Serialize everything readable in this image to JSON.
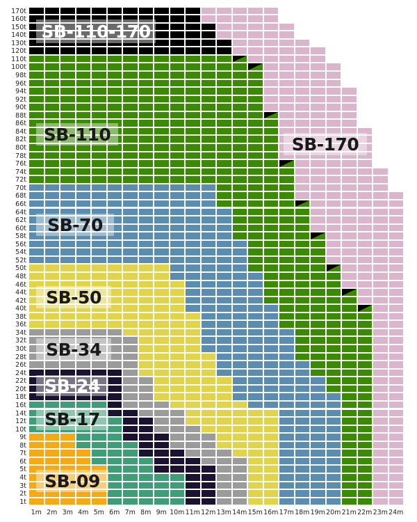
{
  "chart_data": {
    "type": "heatmap",
    "x_labels": [
      "1m",
      "2m",
      "3m",
      "4m",
      "5m",
      "6m",
      "7m",
      "8m",
      "9m",
      "10m",
      "11m",
      "12m",
      "13m",
      "14m",
      "15m",
      "16m",
      "17m",
      "18m",
      "19m",
      "20m",
      "21m",
      "22m",
      "23m",
      "24m"
    ],
    "y_labels": [
      "1t",
      "2t",
      "3t",
      "4t",
      "5t",
      "6t",
      "7t",
      "8t",
      "9t",
      "10t",
      "12t",
      "14t",
      "16t",
      "18t",
      "20t",
      "22t",
      "24t",
      "26t",
      "28t",
      "30t",
      "32t",
      "34t",
      "36t",
      "38t",
      "40t",
      "42t",
      "44t",
      "46t",
      "48t",
      "50t",
      "52t",
      "54t",
      "56t",
      "58t",
      "60t",
      "62t",
      "64t",
      "66t",
      "68t",
      "70t",
      "72t",
      "74t",
      "76t",
      "78t",
      "80t",
      "82t",
      "84t",
      "86t",
      "88t",
      "90t",
      "92t",
      "94t",
      "96t",
      "98t",
      "100t",
      "110t",
      "120t",
      "130t",
      "140t",
      "150t",
      "160t",
      "170t"
    ],
    "classes": {
      "SB-09": "#f5a915",
      "SB-17": "#3f9e78",
      "SB-24": "#1b1131",
      "SB-34": "#9b9b9b",
      "SB-50": "#e2d44a",
      "SB-70": "#5a8db0",
      "SB-110": "#3b8a04",
      "SB-110-170": "#000000",
      "SB-170": "#dbb5cc"
    },
    "columns": [
      [
        [
          "SB-09",
          "1t",
          "9t"
        ],
        [
          "SB-17",
          "10t",
          "16t"
        ],
        [
          "SB-24",
          "18t",
          "24t"
        ],
        [
          "SB-34",
          "26t",
          "34t"
        ],
        [
          "SB-50",
          "36t",
          "50t"
        ],
        [
          "SB-70",
          "52t",
          "70t"
        ],
        [
          "SB-110",
          "72t",
          "110t"
        ],
        [
          "SB-110-170",
          "120t",
          "170t"
        ]
      ],
      [
        [
          "SB-09",
          "1t",
          "9t"
        ],
        [
          "SB-17",
          "10t",
          "16t"
        ],
        [
          "SB-24",
          "18t",
          "24t"
        ],
        [
          "SB-34",
          "26t",
          "34t"
        ],
        [
          "SB-50",
          "36t",
          "50t"
        ],
        [
          "SB-70",
          "52t",
          "70t"
        ],
        [
          "SB-110",
          "72t",
          "110t"
        ],
        [
          "SB-110-170",
          "120t",
          "170t"
        ]
      ],
      [
        [
          "SB-09",
          "1t",
          "9t"
        ],
        [
          "SB-17",
          "10t",
          "16t"
        ],
        [
          "SB-24",
          "18t",
          "24t"
        ],
        [
          "SB-34",
          "26t",
          "34t"
        ],
        [
          "SB-50",
          "36t",
          "50t"
        ],
        [
          "SB-70",
          "52t",
          "70t"
        ],
        [
          "SB-110",
          "72t",
          "110t"
        ],
        [
          "SB-110-170",
          "120t",
          "170t"
        ]
      ],
      [
        [
          "SB-09",
          "1t",
          "7t"
        ],
        [
          "SB-17",
          "8t",
          "16t"
        ],
        [
          "SB-24",
          "18t",
          "24t"
        ],
        [
          "SB-34",
          "26t",
          "34t"
        ],
        [
          "SB-50",
          "36t",
          "50t"
        ],
        [
          "SB-70",
          "52t",
          "70t"
        ],
        [
          "SB-110",
          "72t",
          "110t"
        ],
        [
          "SB-110-170",
          "120t",
          "170t"
        ]
      ],
      [
        [
          "SB-09",
          "1t",
          "5t"
        ],
        [
          "SB-17",
          "6t",
          "16t"
        ],
        [
          "SB-24",
          "18t",
          "24t"
        ],
        [
          "SB-34",
          "26t",
          "34t"
        ],
        [
          "SB-50",
          "36t",
          "50t"
        ],
        [
          "SB-70",
          "52t",
          "70t"
        ],
        [
          "SB-110",
          "72t",
          "110t"
        ],
        [
          "SB-110-170",
          "120t",
          "170t"
        ]
      ],
      [
        [
          "SB-17",
          "1t",
          "12t"
        ],
        [
          "SB-24",
          "14t",
          "24t"
        ],
        [
          "SB-34",
          "26t",
          "34t"
        ],
        [
          "SB-50",
          "36t",
          "50t"
        ],
        [
          "SB-70",
          "52t",
          "70t"
        ],
        [
          "SB-110",
          "72t",
          "110t"
        ],
        [
          "SB-110-170",
          "120t",
          "170t"
        ]
      ],
      [
        [
          "SB-17",
          "1t",
          "8t"
        ],
        [
          "SB-24",
          "9t",
          "14t"
        ],
        [
          "SB-34",
          "16t",
          "32t"
        ],
        [
          "SB-50",
          "34t",
          "50t"
        ],
        [
          "SB-70",
          "52t",
          "70t"
        ],
        [
          "SB-110",
          "72t",
          "110t"
        ],
        [
          "SB-110-170",
          "120t",
          "170t"
        ]
      ],
      [
        [
          "SB-17",
          "1t",
          "6t"
        ],
        [
          "SB-24",
          "7t",
          "12t"
        ],
        [
          "SB-34",
          "14t",
          "22t"
        ],
        [
          "SB-50",
          "24t",
          "50t"
        ],
        [
          "SB-70",
          "52t",
          "70t"
        ],
        [
          "SB-110",
          "72t",
          "110t"
        ],
        [
          "SB-110-170",
          "120t",
          "170t"
        ]
      ],
      [
        [
          "SB-17",
          "1t",
          "4t"
        ],
        [
          "SB-24",
          "5t",
          "9t"
        ],
        [
          "SB-34",
          "10t",
          "16t"
        ],
        [
          "SB-50",
          "18t",
          "50t"
        ],
        [
          "SB-70",
          "52t",
          "70t"
        ],
        [
          "SB-110",
          "72t",
          "110t"
        ],
        [
          "SB-110-170",
          "120t",
          "170t"
        ]
      ],
      [
        [
          "SB-17",
          "1t",
          "4t"
        ],
        [
          "SB-24",
          "5t",
          "7t"
        ],
        [
          "SB-34",
          "8t",
          "14t"
        ],
        [
          "SB-50",
          "16t",
          "46t"
        ],
        [
          "SB-70",
          "48t",
          "70t"
        ],
        [
          "SB-110",
          "72t",
          "110t"
        ],
        [
          "SB-110-170",
          "120t",
          "170t"
        ]
      ],
      [
        [
          "SB-24",
          "1t",
          "6t"
        ],
        [
          "SB-34",
          "7t",
          "10t"
        ],
        [
          "SB-50",
          "12t",
          "38t"
        ],
        [
          "SB-70",
          "40t",
          "70t"
        ],
        [
          "SB-110",
          "72t",
          "110t"
        ],
        [
          "SB-110-170",
          "120t",
          "170t"
        ]
      ],
      [
        [
          "SB-24",
          "1t",
          "5t"
        ],
        [
          "SB-34",
          "6t",
          "9t"
        ],
        [
          "SB-50",
          "10t",
          "28t"
        ],
        [
          "SB-70",
          "30t",
          "70t"
        ],
        [
          "SB-110",
          "72t",
          "110t"
        ],
        [
          "SB-110-170",
          "120t",
          "150t"
        ],
        [
          "SB-170",
          "160t",
          "170t"
        ]
      ],
      [
        [
          "SB-34",
          "1t",
          "7t"
        ],
        [
          "SB-50",
          "8t",
          "22t"
        ],
        [
          "SB-70",
          "24t",
          "64t"
        ],
        [
          "SB-110",
          "66t",
          "110t"
        ],
        [
          "SB-110-170",
          "120t",
          "130t"
        ],
        [
          "SB-170",
          "140t",
          "170t"
        ]
      ],
      [
        [
          "SB-34",
          "1t",
          "6t"
        ],
        [
          "SB-50",
          "7t",
          "16t"
        ],
        [
          "SB-70",
          "18t",
          "56t"
        ],
        [
          "SB-110",
          "58t",
          "110t"
        ],
        [
          "SB-170",
          "120t",
          "170t"
        ]
      ],
      [
        [
          "SB-50",
          "1t",
          "14t"
        ],
        [
          "SB-70",
          "16t",
          "48t"
        ],
        [
          "SB-110",
          "50t",
          "100t"
        ],
        [
          "SB-170",
          "110t",
          "170t"
        ]
      ],
      [
        [
          "SB-50",
          "1t",
          "14t"
        ],
        [
          "SB-70",
          "16t",
          "40t"
        ],
        [
          "SB-110",
          "42t",
          "88t"
        ],
        [
          "SB-170",
          "90t",
          "170t"
        ]
      ],
      [
        [
          "SB-70",
          "1t",
          "34t"
        ],
        [
          "SB-110",
          "36t",
          "76t"
        ],
        [
          "SB-170",
          "78t",
          "150t"
        ]
      ],
      [
        [
          "SB-70",
          "1t",
          "26t"
        ],
        [
          "SB-110",
          "28t",
          "66t"
        ],
        [
          "SB-170",
          "68t",
          "130t"
        ]
      ],
      [
        [
          "SB-70",
          "1t",
          "22t"
        ],
        [
          "SB-110",
          "24t",
          "58t"
        ],
        [
          "SB-170",
          "60t",
          "120t"
        ]
      ],
      [
        [
          "SB-70",
          "1t",
          "18t"
        ],
        [
          "SB-110",
          "20t",
          "50t"
        ],
        [
          "SB-170",
          "52t",
          "100t"
        ]
      ],
      [
        [
          "SB-110",
          "1t",
          "44t"
        ],
        [
          "SB-170",
          "46t",
          "94t"
        ]
      ],
      [
        [
          "SB-110",
          "1t",
          "40t"
        ],
        [
          "SB-170",
          "42t",
          "84t"
        ]
      ],
      [
        [
          "SB-170",
          "1t",
          "74t"
        ]
      ],
      [
        [
          "SB-170",
          "1t",
          "68t"
        ]
      ]
    ],
    "split_cells": [
      [
        "14m",
        "110t"
      ],
      [
        "15m",
        "100t"
      ],
      [
        "16m",
        "88t"
      ],
      [
        "17m",
        "76t"
      ],
      [
        "18m",
        "66t"
      ],
      [
        "19m",
        "58t"
      ],
      [
        "20m",
        "50t"
      ],
      [
        "21m",
        "44t"
      ],
      [
        "22m",
        "40t"
      ]
    ],
    "region_labels": [
      "SB-110-170",
      "SB-110",
      "SB-170",
      "SB-70",
      "SB-50",
      "SB-34",
      "SB-24",
      "SB-17",
      "SB-09"
    ]
  }
}
